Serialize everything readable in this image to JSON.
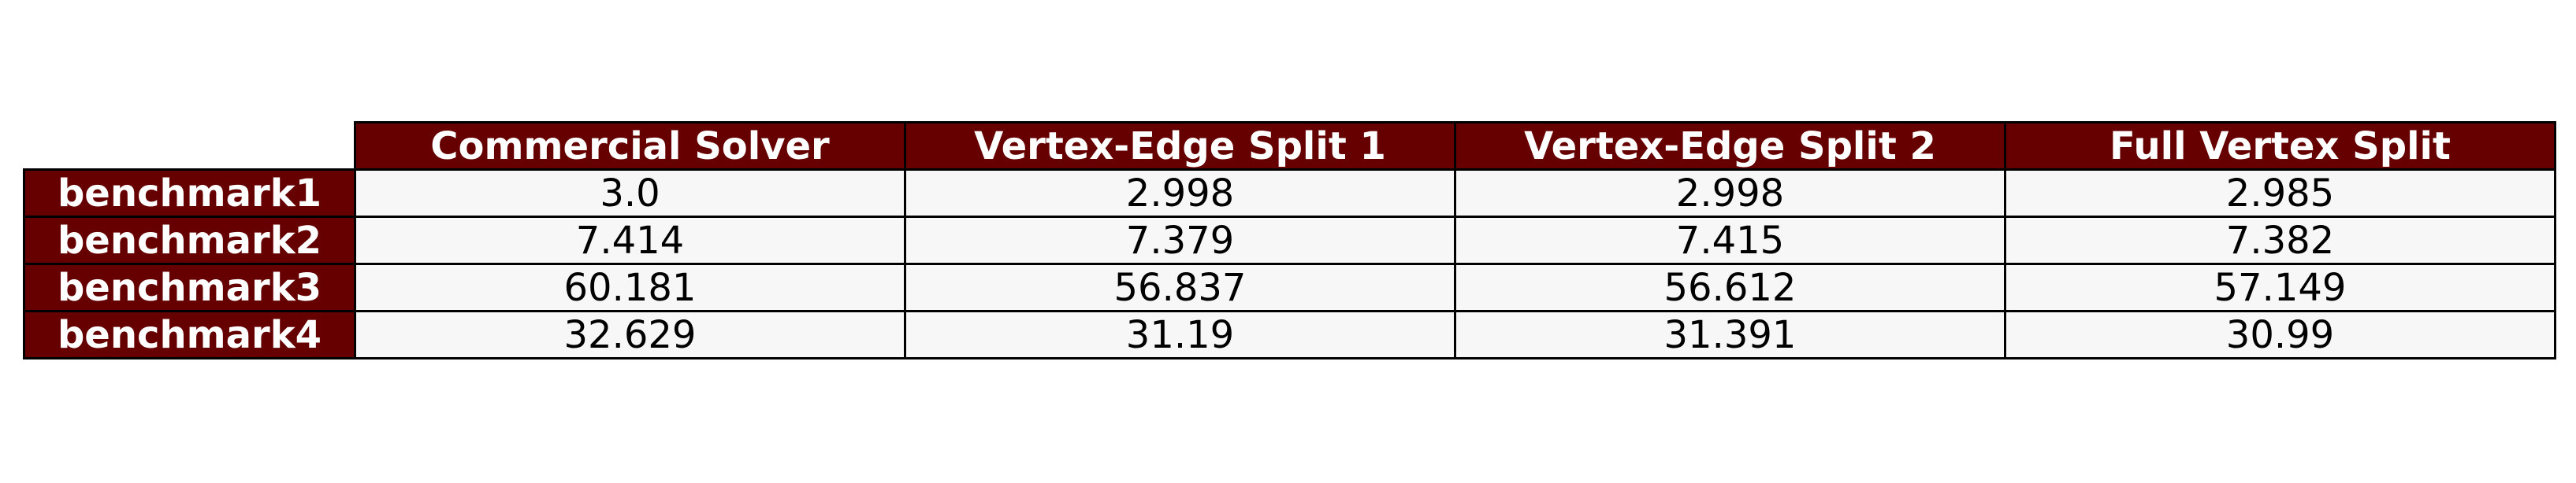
{
  "chart_data": {
    "type": "table",
    "columns": [
      "Commercial Solver",
      "Vertex-Edge Split 1",
      "Vertex-Edge Split 2",
      "Full Vertex Split"
    ],
    "rows": [
      {
        "label": "benchmark1",
        "values": [
          "3.0",
          "2.998",
          "2.998",
          "2.985"
        ]
      },
      {
        "label": "benchmark2",
        "values": [
          "7.414",
          "7.379",
          "7.415",
          "7.382"
        ]
      },
      {
        "label": "benchmark3",
        "values": [
          "60.181",
          "56.837",
          "56.612",
          "57.149"
        ]
      },
      {
        "label": "benchmark4",
        "values": [
          "32.629",
          "31.19",
          "31.391",
          "30.99"
        ]
      }
    ],
    "colors": {
      "header_fill": "#660000",
      "header_text": "#ffffff",
      "cell_fill": "#f7f7f7",
      "cell_text": "#000000",
      "border": "#000000"
    },
    "grid": true
  }
}
